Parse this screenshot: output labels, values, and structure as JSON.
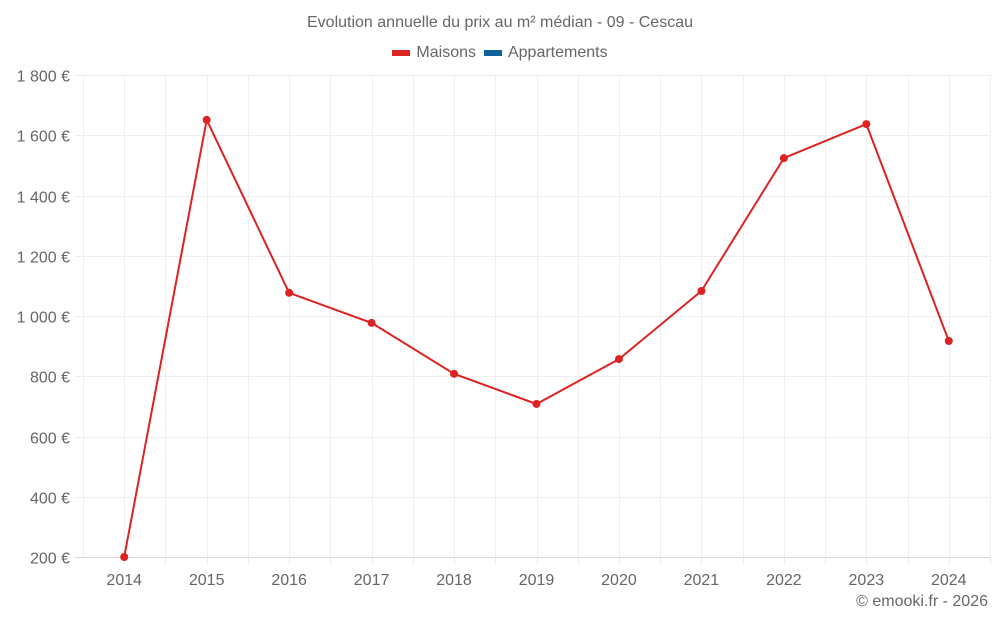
{
  "chart": {
    "title": "Evolution annuelle du prix au m² médian - 09 - Cescau",
    "credit": "© emooki.fr - 2026",
    "legend": [
      {
        "label": "Maisons",
        "color": "#dd2222"
      },
      {
        "label": "Appartements",
        "color": "#0e629b"
      }
    ]
  },
  "chart_data": {
    "type": "line",
    "title": "Evolution annuelle du prix au m² médian - 09 - Cescau",
    "xlabel": "",
    "ylabel": "",
    "categories": [
      "2014",
      "2015",
      "2016",
      "2017",
      "2018",
      "2019",
      "2020",
      "2021",
      "2022",
      "2023",
      "2024"
    ],
    "series": [
      {
        "name": "Maisons",
        "color": "#dd2222",
        "values": [
          200,
          1651,
          1077,
          977,
          808,
          708,
          857,
          1083,
          1524,
          1637,
          917
        ]
      },
      {
        "name": "Appartements",
        "color": "#0e629b",
        "values": []
      }
    ],
    "ylim": [
      200,
      1800
    ],
    "yticks": [
      200,
      400,
      600,
      800,
      1000,
      1200,
      1400,
      1600,
      1800
    ],
    "ytick_labels": [
      "200 €",
      "400 €",
      "600 €",
      "800 €",
      "1 000 €",
      "1 200 €",
      "1 400 €",
      "1 600 €",
      "1 800 €"
    ],
    "grid": true,
    "legend_position": "top"
  }
}
